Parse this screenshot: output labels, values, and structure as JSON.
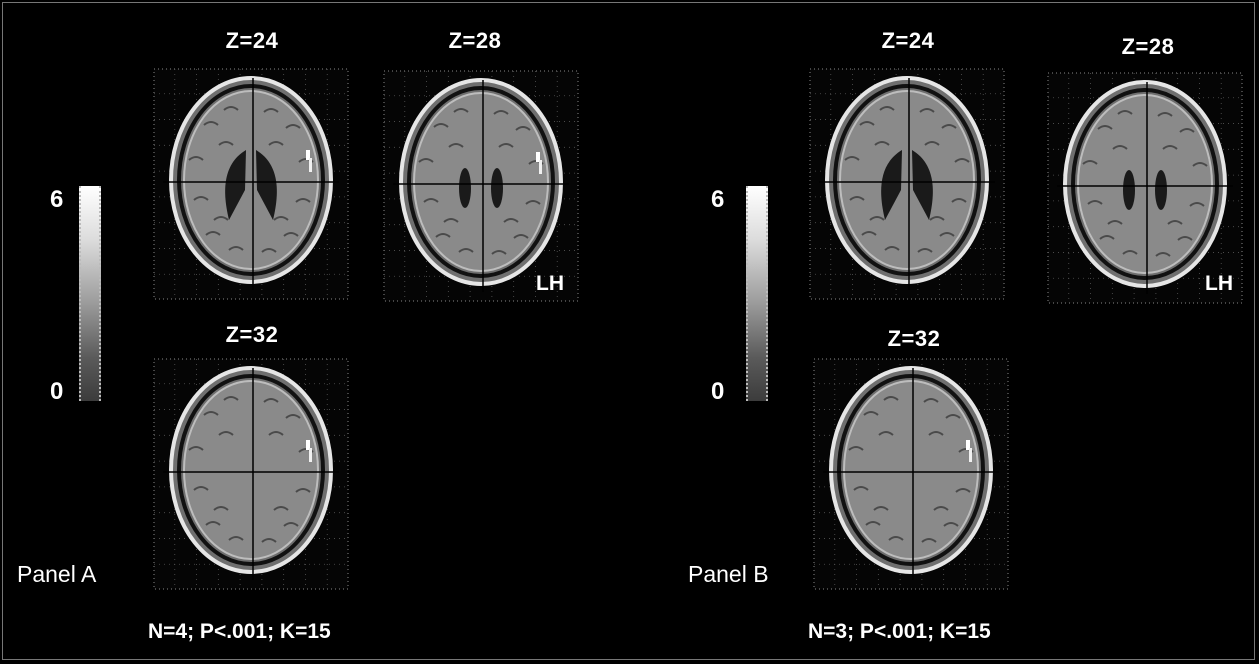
{
  "panel_a": {
    "name": "Panel A",
    "stats": "N=4; P<.001; K=15",
    "colorbar": {
      "max": "6",
      "min": "0"
    },
    "slices": [
      {
        "label": "Z=24",
        "blob": true,
        "ventricle": "large"
      },
      {
        "label": "Z=28",
        "blob": true,
        "ventricle": "small",
        "side": "LH"
      },
      {
        "label": "Z=32",
        "blob": true,
        "ventricle": "none"
      }
    ]
  },
  "panel_b": {
    "name": "Panel B",
    "stats": "N=3; P<.001; K=15",
    "colorbar": {
      "max": "6",
      "min": "0"
    },
    "slices": [
      {
        "label": "Z=24",
        "blob": false,
        "ventricle": "large"
      },
      {
        "label": "Z=28",
        "blob": false,
        "ventricle": "small",
        "side": "LH"
      },
      {
        "label": "Z=32",
        "blob": true,
        "ventricle": "none"
      }
    ]
  },
  "colors": {
    "background": "#000000",
    "text": "#ffffff",
    "brain": "#8a8a8a"
  }
}
